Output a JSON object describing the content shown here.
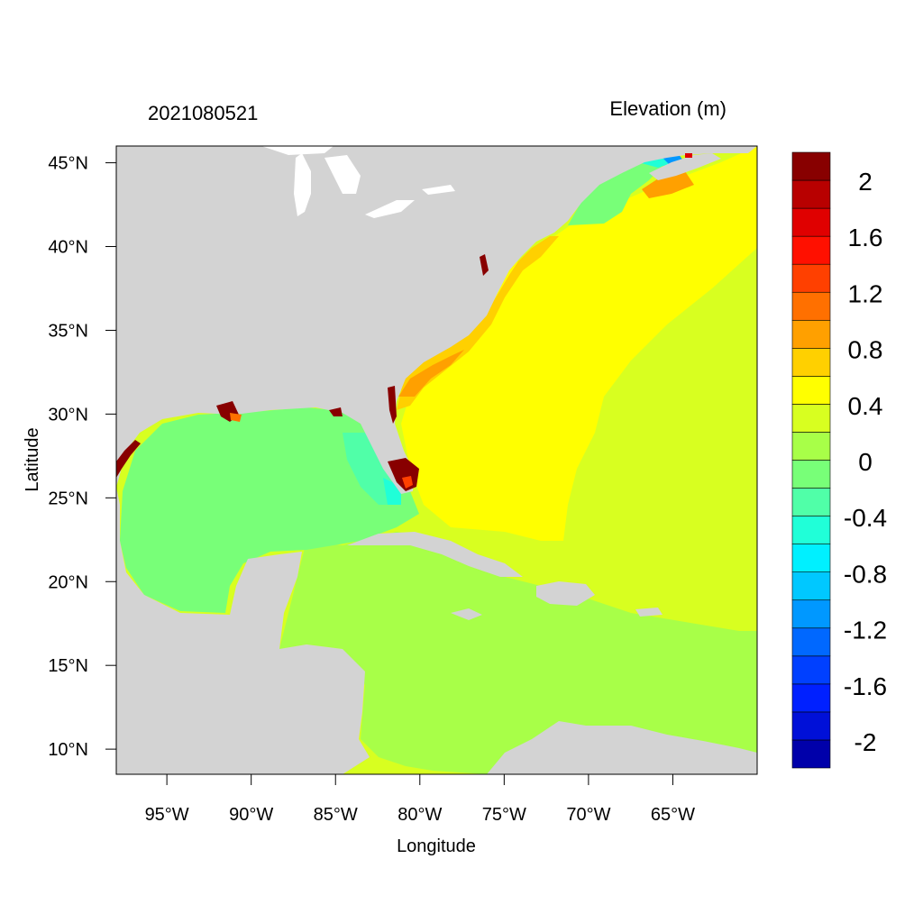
{
  "date_label": "2021080521",
  "variable_label": "Elevation (m)",
  "axes": {
    "xlabel": "Longitude",
    "ylabel": "Latitude",
    "lon_range": [
      -98,
      -60
    ],
    "lat_range": [
      8.5,
      46
    ],
    "lon_ticks": [
      {
        "value": -95,
        "label": "95°W"
      },
      {
        "value": -90,
        "label": "90°W"
      },
      {
        "value": -85,
        "label": "85°W"
      },
      {
        "value": -80,
        "label": "80°W"
      },
      {
        "value": -75,
        "label": "75°W"
      },
      {
        "value": -70,
        "label": "70°W"
      },
      {
        "value": -65,
        "label": "65°W"
      }
    ],
    "lat_ticks": [
      {
        "value": 45,
        "label": "45°N"
      },
      {
        "value": 40,
        "label": "40°N"
      },
      {
        "value": 35,
        "label": "35°N"
      },
      {
        "value": 30,
        "label": "30°N"
      },
      {
        "value": 25,
        "label": "25°N"
      },
      {
        "value": 20,
        "label": "20°N"
      },
      {
        "value": 15,
        "label": "15°N"
      },
      {
        "value": 10,
        "label": "10°N"
      }
    ]
  },
  "colorbar": {
    "colors": [
      "#0000aa",
      "#0010d8",
      "#0020ff",
      "#0040ff",
      "#0068ff",
      "#0098ff",
      "#00c8ff",
      "#00f0ff",
      "#20ffd8",
      "#50ffa8",
      "#78ff78",
      "#a8ff48",
      "#d8ff20",
      "#ffff00",
      "#ffd000",
      "#ffa000",
      "#ff7000",
      "#ff4000",
      "#ff1000",
      "#e00000",
      "#b80000",
      "#880000"
    ],
    "labels": [
      "2",
      "1.6",
      "1.2",
      "0.8",
      "0.4",
      "0",
      "-0.4",
      "-0.8",
      "-1.2",
      "-1.6",
      "-2"
    ]
  },
  "legend_colors": {
    "land": "#d3d3d3",
    "gulf_of_mexico": "#78ff78",
    "caribbean": "#a8ff48",
    "atlantic_open": "#d8ff20",
    "atlantic_shelf": "#ffff00",
    "coastal_surge": "#ffd000",
    "extreme_surge": "#880000"
  }
}
